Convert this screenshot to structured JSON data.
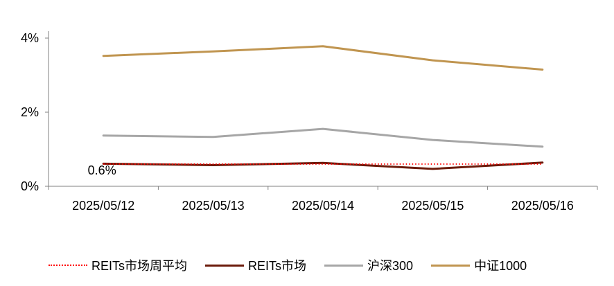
{
  "chart_data": {
    "type": "line",
    "categories": [
      "2025/05/12",
      "2025/05/13",
      "2025/05/14",
      "2025/05/15",
      "2025/05/16"
    ],
    "y_ticks": [
      "0%",
      "2%",
      "4%"
    ],
    "ylim": [
      0,
      4
    ],
    "series": [
      {
        "name": "REITs市场周平均",
        "values": [
          0.6,
          0.6,
          0.6,
          0.6,
          0.6
        ],
        "color": "#ff0000",
        "style": "dotted"
      },
      {
        "name": "REITs市场",
        "values": [
          0.61,
          0.57,
          0.63,
          0.47,
          0.64
        ],
        "color": "#6b1a0a",
        "style": "solid"
      },
      {
        "name": "沪深300",
        "values": [
          1.37,
          1.33,
          1.55,
          1.25,
          1.07
        ],
        "color": "#a6a6a6",
        "style": "solid"
      },
      {
        "name": "中证1000",
        "values": [
          3.52,
          3.64,
          3.78,
          3.4,
          3.15
        ],
        "color": "#c09550",
        "style": "solid"
      }
    ],
    "annotations": [
      {
        "text": "0.6%",
        "series": "REITs市场周平均",
        "category_index": 0
      }
    ],
    "legend_position": "bottom"
  }
}
